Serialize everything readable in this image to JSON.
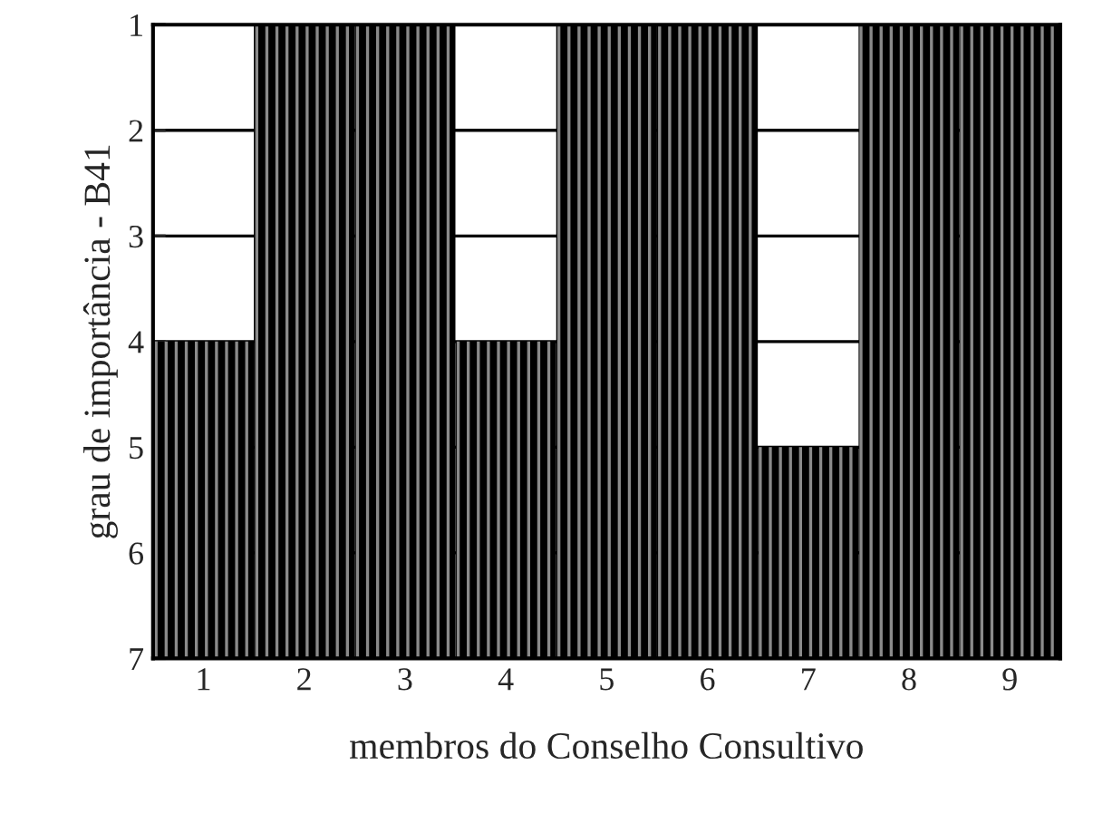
{
  "chart_data": {
    "type": "bar",
    "xlabel": "membros do Conselho Consultivo",
    "ylabel": "grau de importância - B41",
    "categories": [
      "1",
      "2",
      "3",
      "4",
      "5",
      "6",
      "7",
      "8",
      "9"
    ],
    "base": [
      7,
      7,
      7,
      7,
      7,
      7,
      7,
      7,
      7
    ],
    "values": [
      -3,
      -6,
      -6,
      -3,
      -6,
      -6,
      -2,
      -6,
      -6
    ],
    "color": "#000000",
    "ylim": [
      7,
      1
    ],
    "yticks": [
      1,
      2,
      3,
      4,
      5,
      6,
      7
    ],
    "grid": "y",
    "legend": false
  }
}
